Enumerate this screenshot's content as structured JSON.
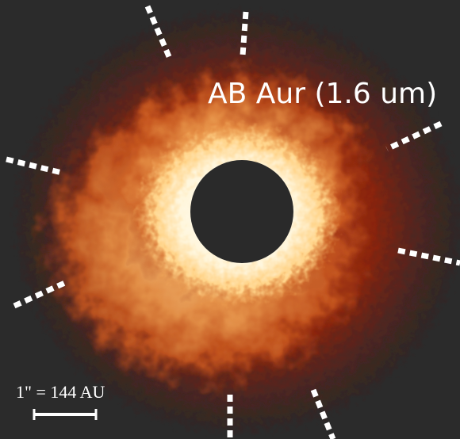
{
  "image": {
    "label": "AB Aur (1.6 um)",
    "scale_label": "1\" = 144 AU"
  }
}
